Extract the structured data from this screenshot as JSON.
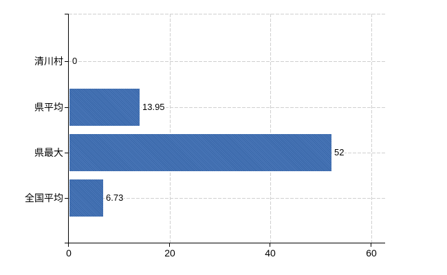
{
  "chart": {
    "background_color": "#ffffff",
    "bar_color": "#3a6cb4",
    "grid_color": "#cfcfcf",
    "axis_color": "#000000",
    "text_color": "#000000"
  },
  "chart_data": {
    "type": "bar",
    "orientation": "horizontal",
    "title": "",
    "xlabel": "",
    "ylabel": "",
    "categories": [
      "清川村",
      "県平均",
      "県最大",
      "全国平均"
    ],
    "values": [
      0,
      13.95,
      52,
      6.73
    ],
    "value_labels": [
      "0",
      "13.95",
      "52",
      "6.73"
    ],
    "xticks": [
      0,
      20,
      40,
      60
    ],
    "xtick_labels": [
      "0",
      "20",
      "40",
      "60"
    ],
    "xlim": [
      0,
      62.7
    ],
    "grid": true,
    "legend": false
  }
}
